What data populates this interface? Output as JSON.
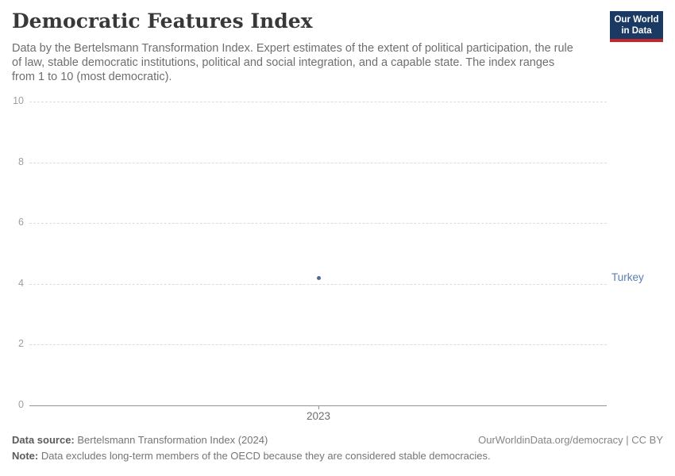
{
  "header": {
    "title": "Democratic Features Index",
    "subtitle_lines": [
      "Data by the Bertelsmann Transformation Index. Expert estimates of the extent of political participation, the rule",
      "of law, stable democratic institutions, political and social integration, and a capable state. The index ranges",
      "from 1 to 10 (most democratic)."
    ],
    "logo": {
      "line1": "Our World",
      "line2": "in Data"
    }
  },
  "chart_data": {
    "type": "scatter",
    "title": "Democratic Features Index",
    "categories": [
      2023
    ],
    "x_tick_label": "2023",
    "series": [
      {
        "name": "Turkey",
        "x": [
          2023
        ],
        "values": [
          4.2
        ]
      }
    ],
    "yticks": [
      0,
      2,
      4,
      6,
      8,
      10
    ],
    "ylim": [
      0,
      10
    ],
    "xlabel": "",
    "ylabel": "",
    "grid": true,
    "legend_position": "right-entity-label",
    "point_color": "#4c6a9c",
    "label_color": "#5b7db1"
  },
  "footer": {
    "source_label": "Data source:",
    "source_text": "Bertelsmann Transformation Index (2024)",
    "link_text": "OurWorldinData.org/democracy | CC BY",
    "note_label": "Note:",
    "note_text": "Data excludes long-term members of the OECD because they are considered stable democracies."
  }
}
